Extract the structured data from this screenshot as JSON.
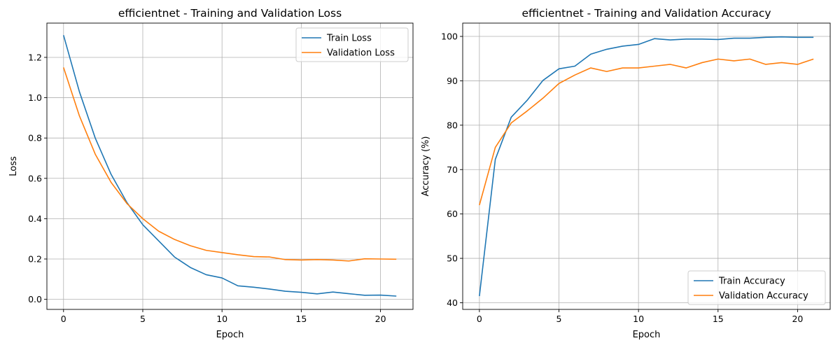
{
  "chart_data": [
    {
      "type": "line",
      "title": "efficientnet - Training and Validation Loss",
      "xlabel": "Epoch",
      "ylabel": "Loss",
      "xlim": [
        -1.05,
        22.05
      ],
      "ylim": [
        -0.05,
        1.37
      ],
      "xticks": [
        0,
        5,
        10,
        15,
        20
      ],
      "yticks": [
        0.0,
        0.2,
        0.4,
        0.6,
        0.8,
        1.0,
        1.2
      ],
      "ytick_labels": [
        "0.0",
        "0.2",
        "0.4",
        "0.6",
        "0.8",
        "1.0",
        "1.2"
      ],
      "grid": true,
      "legend_position": "top-right",
      "x": [
        0,
        1,
        2,
        3,
        4,
        5,
        6,
        7,
        8,
        9,
        10,
        11,
        12,
        13,
        14,
        15,
        16,
        17,
        18,
        19,
        20,
        21
      ],
      "series": [
        {
          "name": "Train Loss",
          "color": "#1f77b4",
          "values": [
            1.31,
            1.03,
            0.8,
            0.62,
            0.48,
            0.37,
            0.29,
            0.21,
            0.158,
            0.122,
            0.106,
            0.067,
            0.06,
            0.051,
            0.04,
            0.035,
            0.027,
            0.036,
            0.028,
            0.02,
            0.021,
            0.016
          ]
        },
        {
          "name": "Validation Loss",
          "color": "#ff7f0e",
          "values": [
            1.15,
            0.91,
            0.72,
            0.58,
            0.475,
            0.4,
            0.338,
            0.297,
            0.266,
            0.243,
            0.232,
            0.221,
            0.212,
            0.21,
            0.197,
            0.195,
            0.197,
            0.195,
            0.19,
            0.201,
            0.2,
            0.199
          ]
        }
      ]
    },
    {
      "type": "line",
      "title": "efficientnet - Training and Validation Accuracy",
      "xlabel": "Epoch",
      "ylabel": "Accuracy (%)",
      "xlim": [
        -1.05,
        22.05
      ],
      "ylim": [
        38.5,
        103.0
      ],
      "xticks": [
        0,
        5,
        10,
        15,
        20
      ],
      "yticks": [
        40,
        50,
        60,
        70,
        80,
        90,
        100
      ],
      "ytick_labels": [
        "40",
        "50",
        "60",
        "70",
        "80",
        "90",
        "100"
      ],
      "grid": true,
      "legend_position": "bottom-right",
      "x": [
        0,
        1,
        2,
        3,
        4,
        5,
        6,
        7,
        8,
        9,
        10,
        11,
        12,
        13,
        14,
        15,
        16,
        17,
        18,
        19,
        20,
        21
      ],
      "series": [
        {
          "name": "Train Accuracy",
          "color": "#1f77b4",
          "values": [
            41.5,
            72.3,
            81.8,
            85.6,
            90.1,
            92.7,
            93.3,
            96.0,
            97.1,
            97.8,
            98.2,
            99.5,
            99.2,
            99.4,
            99.4,
            99.3,
            99.6,
            99.6,
            99.8,
            99.9,
            99.8,
            99.8
          ]
        },
        {
          "name": "Validation Accuracy",
          "color": "#ff7f0e",
          "values": [
            62.0,
            75.0,
            80.5,
            83.2,
            86.1,
            89.4,
            91.3,
            92.9,
            92.1,
            92.9,
            92.9,
            93.3,
            93.7,
            92.9,
            94.1,
            94.9,
            94.5,
            94.9,
            93.7,
            94.1,
            93.7,
            94.9
          ]
        }
      ]
    }
  ]
}
